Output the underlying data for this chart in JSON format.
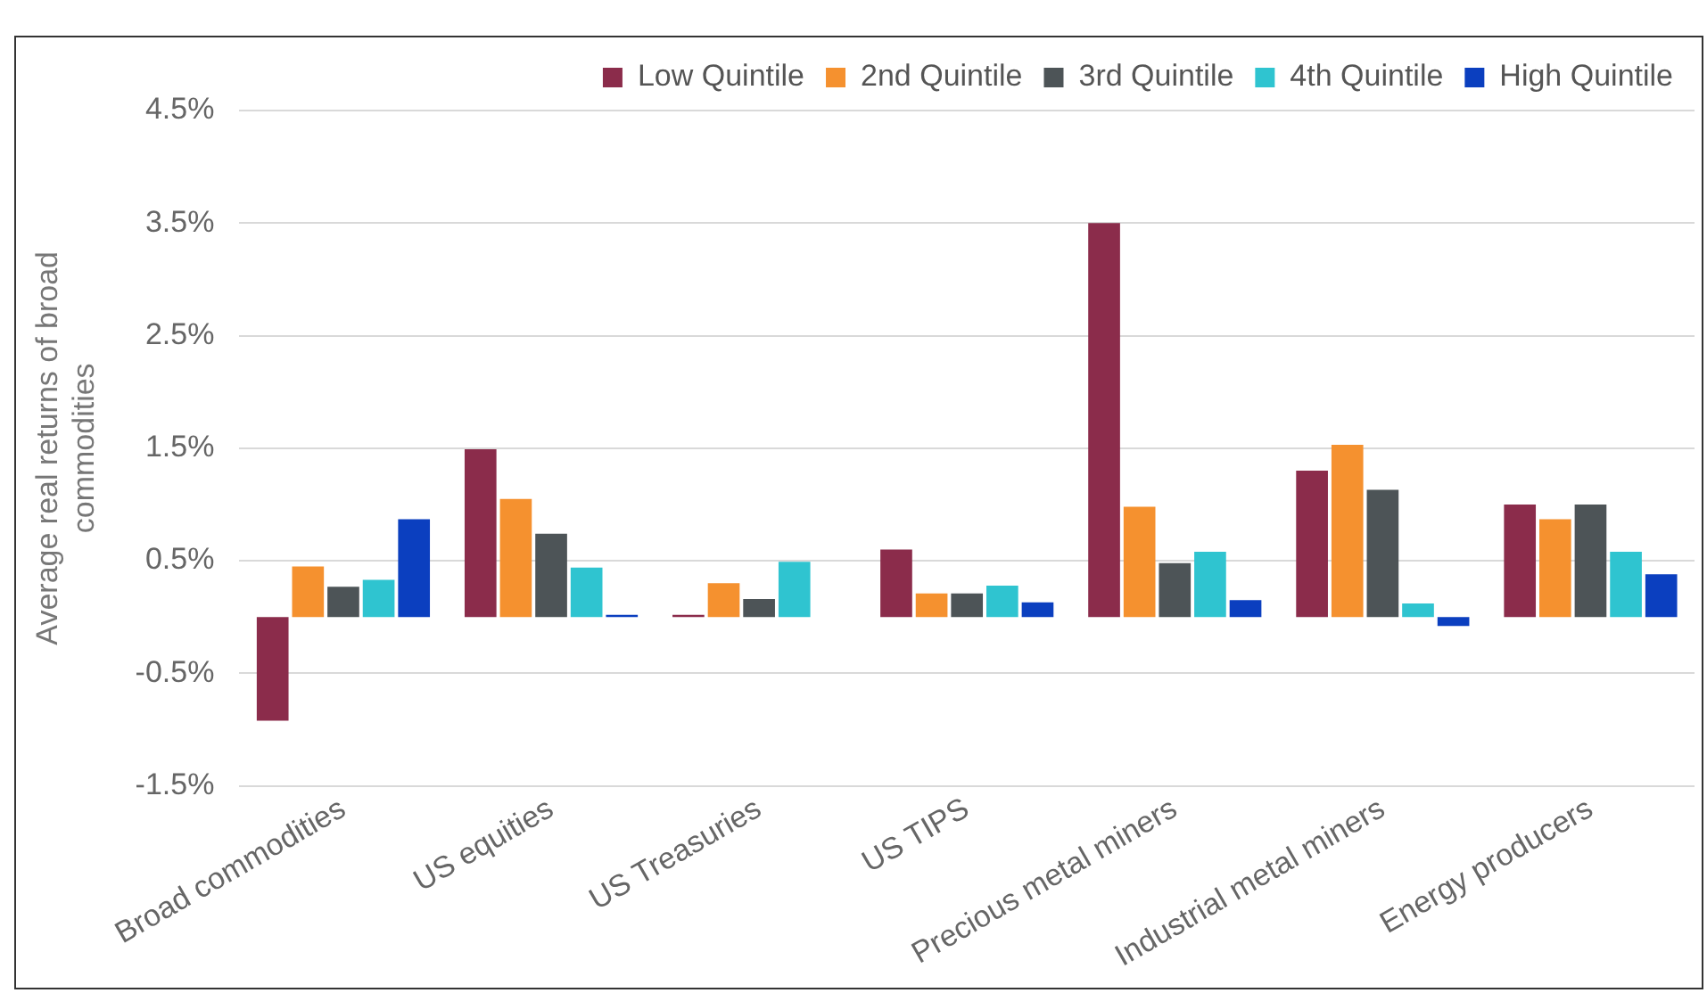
{
  "chart_data": {
    "type": "bar",
    "ylabel": "Average real returns of broad commodities",
    "categories": [
      "Broad commodities",
      "US equities",
      "US Treasuries",
      "US TIPS",
      "Precious metal miners",
      "Industrial metal miners",
      "Energy producers"
    ],
    "series": [
      {
        "name": "Low Quintile",
        "color": "#8b2c4b",
        "values": [
          -0.92,
          1.49,
          0.02,
          0.6,
          3.5,
          1.3,
          1.0
        ]
      },
      {
        "name": "2nd Quintile",
        "color": "#f5912f",
        "values": [
          0.45,
          1.05,
          0.3,
          0.21,
          0.98,
          1.53,
          0.87
        ]
      },
      {
        "name": "3rd Quintile",
        "color": "#4d5457",
        "values": [
          0.27,
          0.74,
          0.16,
          0.21,
          0.48,
          1.13,
          1.0
        ]
      },
      {
        "name": "4th Quintile",
        "color": "#2fc4d0",
        "values": [
          0.33,
          0.44,
          0.49,
          0.28,
          0.58,
          0.12,
          0.58
        ]
      },
      {
        "name": "High Quintile",
        "color": "#0b3fbf",
        "values": [
          0.87,
          0.02,
          null,
          0.13,
          0.15,
          -0.08,
          0.38
        ]
      }
    ],
    "ylim": [
      -1.5,
      4.5
    ],
    "yticks": [
      {
        "value": -1.5,
        "label": "-1.5%"
      },
      {
        "value": -0.5,
        "label": "-0.5%"
      },
      {
        "value": 0.5,
        "label": "0.5%"
      },
      {
        "value": 1.5,
        "label": "1.5%"
      },
      {
        "value": 2.5,
        "label": "2.5%"
      },
      {
        "value": 3.5,
        "label": "3.5%"
      },
      {
        "value": 4.5,
        "label": "4.5%"
      }
    ],
    "grid": "y",
    "legend": "top right"
  }
}
